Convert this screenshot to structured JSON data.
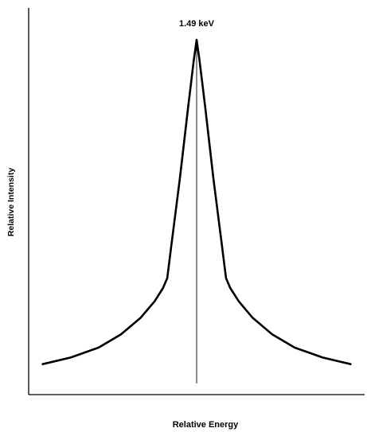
{
  "chart_data": {
    "type": "line",
    "title": "",
    "xlabel": "Relative Energy",
    "ylabel": "Relative Intensity",
    "xlim": [
      -6,
      6
    ],
    "ylim": [
      0,
      1.05
    ],
    "grid": false,
    "legend": "none",
    "axis_ticks": false,
    "series": [
      {
        "x": [
          -5.5,
          -4.5,
          -3.5,
          -2.7,
          -2.0,
          -1.5,
          -1.2,
          -1.05,
          -0.9,
          -0.6,
          -0.3,
          -0.1,
          0,
          0.1,
          0.3,
          0.6,
          0.9,
          1.05,
          1.2,
          1.5,
          2.0,
          2.7,
          3.5,
          4.5,
          5.5
        ],
        "y": [
          0.02,
          0.04,
          0.07,
          0.11,
          0.16,
          0.21,
          0.25,
          0.28,
          0.38,
          0.58,
          0.8,
          0.94,
          1.0,
          0.94,
          0.8,
          0.58,
          0.38,
          0.28,
          0.25,
          0.21,
          0.16,
          0.11,
          0.07,
          0.04,
          0.02
        ],
        "color": "#000000"
      }
    ],
    "annotations": [
      {
        "text": "1.49 keV",
        "x": 0,
        "y": 1.0
      }
    ],
    "reference_lines": [
      {
        "orientation": "vertical",
        "x": 0
      }
    ]
  }
}
